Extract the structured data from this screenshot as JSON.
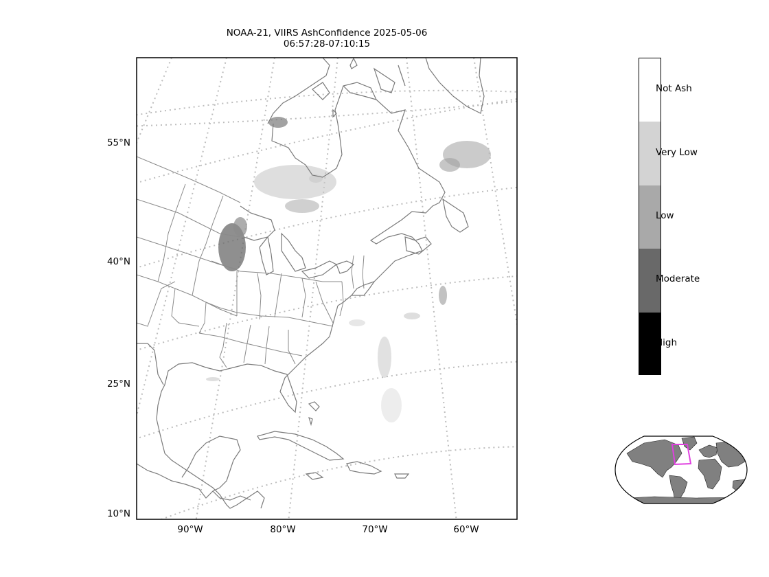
{
  "title": {
    "line1": "NOAA-21, VIIRS AshConfidence 2025-05-06",
    "line2": "06:57:28-07:10:15"
  },
  "map": {
    "lat_labels": [
      "55°N",
      "40°N",
      "25°N",
      "10°N"
    ],
    "lon_labels": [
      "90°W",
      "80°W",
      "70°W",
      "60°W"
    ]
  },
  "colorbar": {
    "classes": [
      {
        "label": "Not Ash",
        "color": "#ffffff"
      },
      {
        "label": "Very Low",
        "color": "#d3d3d3"
      },
      {
        "label": "Low",
        "color": "#a9a9a9"
      },
      {
        "label": "Moderate",
        "color": "#696969"
      },
      {
        "label": "High",
        "color": "#000000"
      }
    ]
  },
  "locator": {
    "land_color": "#808080",
    "box_color": "#e040e0"
  }
}
